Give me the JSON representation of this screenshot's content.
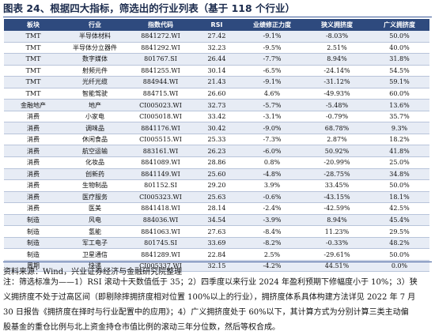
{
  "title": "图表 24、根据四大指标，筛选出的行业列表（基于 118 个行业）",
  "table": {
    "headers": [
      "板块",
      "行业",
      "指数代码",
      "RSI",
      "业绩修正力度",
      "狭义拥挤度",
      "广义拥挤度"
    ],
    "rows": [
      [
        "TMT",
        "半导体材料",
        "8841272.WI",
        "27.42",
        "-9.1%",
        "-8.03%",
        "50.0%"
      ],
      [
        "TMT",
        "半导体分立器件",
        "8841292.WI",
        "32.23",
        "-9.5%",
        "2.51%",
        "40.0%"
      ],
      [
        "TMT",
        "数字媒体",
        "801767.SI",
        "26.44",
        "-7.7%",
        "8.94%",
        "31.8%"
      ],
      [
        "TMT",
        "射频元件",
        "8841255.WI",
        "30.14",
        "-6.5%",
        "-24.14%",
        "54.5%"
      ],
      [
        "TMT",
        "光纤光缆",
        "884944.WI",
        "21.43",
        "-9.1%",
        "-31.12%",
        "59.1%"
      ],
      [
        "TMT",
        "智能驾驶",
        "884715.WI",
        "26.60",
        "4.6%",
        "-49.93%",
        "60.0%"
      ],
      [
        "金融地产",
        "地产",
        "CI005023.WI",
        "32.73",
        "-5.7%",
        "-5.48%",
        "13.6%"
      ],
      [
        "消费",
        "小家电",
        "CI005018.WI",
        "33.42",
        "-3.1%",
        "-0.79%",
        "35.7%"
      ],
      [
        "消费",
        "调味品",
        "8841176.WI",
        "30.42",
        "-9.0%",
        "68.78%",
        "9.3%"
      ],
      [
        "消费",
        "休闲食品",
        "CI005515.WI",
        "25.33",
        "-7.3%",
        "2.87%",
        "18.2%"
      ],
      [
        "消费",
        "航空运输",
        "883161.WI",
        "26.23",
        "-6.0%",
        "50.92%",
        "41.8%"
      ],
      [
        "消费",
        "化妆品",
        "8841089.WI",
        "28.86",
        "0.8%",
        "-20.99%",
        "25.0%"
      ],
      [
        "消费",
        "创新药",
        "8841149.WI",
        "25.60",
        "-4.8%",
        "-28.75%",
        "34.8%"
      ],
      [
        "消费",
        "生物制品",
        "801152.SI",
        "29.20",
        "3.9%",
        "33.45%",
        "50.0%"
      ],
      [
        "消费",
        "医疗服务",
        "CI005323.WI",
        "25.63",
        "-0.6%",
        "-43.15%",
        "18.1%"
      ],
      [
        "消费",
        "医美",
        "8841418.WI",
        "28.14",
        "-2.4%",
        "-42.59%",
        "42.5%"
      ],
      [
        "制造",
        "风电",
        "884036.WI",
        "34.54",
        "-3.9%",
        "8.94%",
        "45.4%"
      ],
      [
        "制造",
        "氢能",
        "8841063.WI",
        "27.63",
        "-8.4%",
        "11.23%",
        "29.5%"
      ],
      [
        "制造",
        "军工电子",
        "801745.SI",
        "33.69",
        "-8.2%",
        "-0.33%",
        "48.2%"
      ],
      [
        "制造",
        "卫星通信",
        "8841289.WI",
        "22.84",
        "2.5%",
        "-29.61%",
        "50.0%"
      ],
      [
        "周期",
        "快递",
        "CI005337.WI",
        "32.15",
        "-4.2%",
        "44.51%",
        "0.0%"
      ]
    ]
  },
  "source": "资料来源：Wind，兴业证券经济与金融研究院整理",
  "note_lines": [
    "注：筛选标准为——1）RSI 滚动十天数值低于 35；2）四季度以来行业 2024 年盈利预期下修幅度小于 10%；3）狭",
    "义拥挤度不处于过高区间（即剔除摔拥挤度相对位置 100%以上的行业），拥挤度体系具体构建方法详见 2022 年 7 月",
    "30 日报告《拥挤度在择时与行业配置中的应用》；4）广义拥挤度处于 60%以下，其计算方式为分别计算三类主动偏",
    "股基金的重仓比例与北上资金持仓市值比例的滚动三年分位数，然后等权合成。"
  ]
}
